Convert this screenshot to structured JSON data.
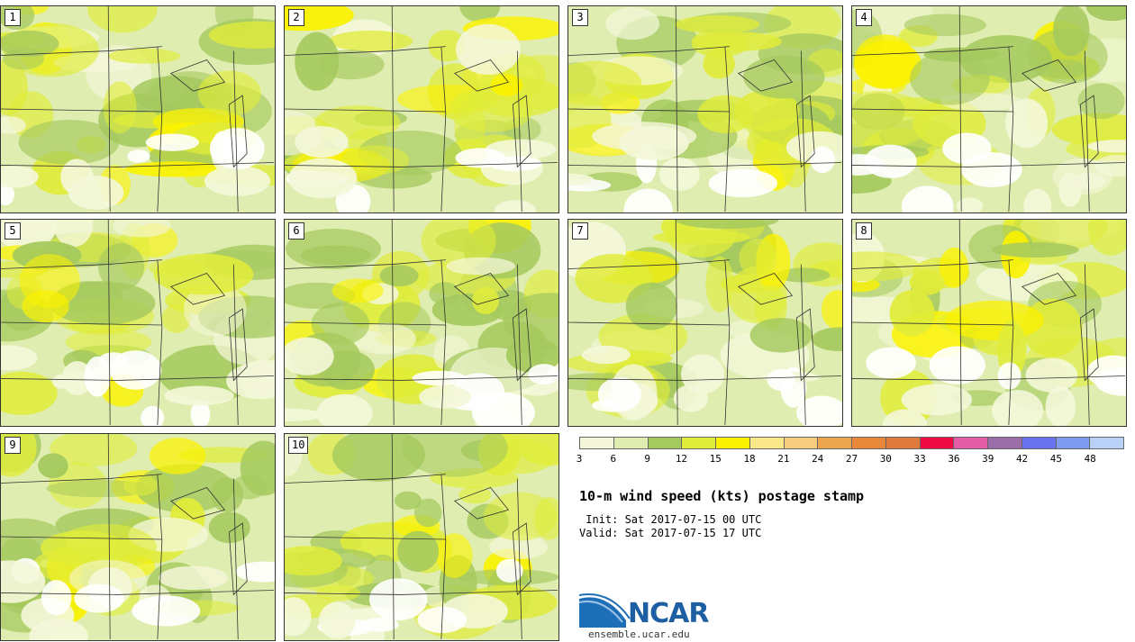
{
  "panels": [
    {
      "label": "1"
    },
    {
      "label": "2"
    },
    {
      "label": "3"
    },
    {
      "label": "4"
    },
    {
      "label": "5"
    },
    {
      "label": "6"
    },
    {
      "label": "7"
    },
    {
      "label": "8"
    },
    {
      "label": "9"
    },
    {
      "label": "10"
    }
  ],
  "colorbar": {
    "ticks": [
      "3",
      "6",
      "9",
      "12",
      "15",
      "18",
      "21",
      "24",
      "27",
      "30",
      "33",
      "36",
      "39",
      "42",
      "45",
      "48"
    ],
    "colors": [
      "#f4f7d9",
      "#dfeeb0",
      "#a5c95e",
      "#e0ec3a",
      "#fbf200",
      "#fbe88a",
      "#f6cd7e",
      "#eda650",
      "#e8883b",
      "#dd7a3c",
      "#ee0b44",
      "#e45ea7",
      "#9a6ca8",
      "#6774ed",
      "#7d9cf2",
      "#b9d0f7"
    ]
  },
  "title": "10-m wind speed (kts) postage stamp",
  "init": " Init: Sat 2017-07-15 00 UTC",
  "valid": "Valid: Sat 2017-07-15 17 UTC",
  "logo": {
    "text": "NCAR",
    "url_text": "ensemble.ucar.edu"
  }
}
